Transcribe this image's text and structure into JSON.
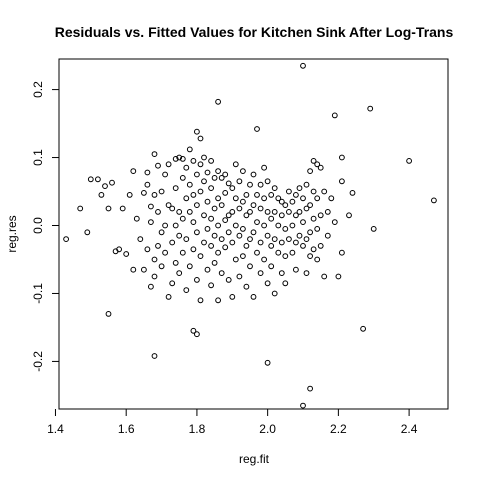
{
  "chart_data": {
    "type": "scatter",
    "title": "Residuals vs. Fitted Values for Kitchen Sink After Log-Trans",
    "xlabel": "reg.fit",
    "ylabel": "reg.res",
    "xlim": [
      1.41,
      2.51
    ],
    "ylim": [
      -0.27,
      0.245
    ],
    "x_ticks": [
      "1.4",
      "1.6",
      "1.8",
      "2.0",
      "2.2",
      "2.4"
    ],
    "y_ticks": [
      "-0.2",
      "-0.1",
      "0.0",
      "0.1",
      "0.2"
    ],
    "grid": false,
    "points": [
      [
        1.43,
        -0.02
      ],
      [
        1.47,
        0.025
      ],
      [
        1.49,
        -0.01
      ],
      [
        1.5,
        0.068
      ],
      [
        1.52,
        0.068
      ],
      [
        1.53,
        0.045
      ],
      [
        1.54,
        0.058
      ],
      [
        1.55,
        -0.13
      ],
      [
        1.55,
        0.025
      ],
      [
        1.56,
        0.063
      ],
      [
        1.57,
        -0.038
      ],
      [
        1.58,
        -0.035
      ],
      [
        1.59,
        0.025
      ],
      [
        1.6,
        -0.042
      ],
      [
        1.61,
        0.045
      ],
      [
        1.62,
        0.08
      ],
      [
        1.62,
        -0.065
      ],
      [
        1.63,
        0.01
      ],
      [
        1.64,
        -0.02
      ],
      [
        1.65,
        0.048
      ],
      [
        1.65,
        -0.065
      ],
      [
        1.66,
        0.06
      ],
      [
        1.66,
        0.078
      ],
      [
        1.66,
        -0.035
      ],
      [
        1.67,
        0.028
      ],
      [
        1.67,
        -0.09
      ],
      [
        1.67,
        0.005
      ],
      [
        1.68,
        0.105
      ],
      [
        1.68,
        0.045
      ],
      [
        1.68,
        -0.05
      ],
      [
        1.68,
        -0.192
      ],
      [
        1.68,
        -0.075
      ],
      [
        1.69,
        0.088
      ],
      [
        1.69,
        0.02
      ],
      [
        1.69,
        -0.03
      ],
      [
        1.7,
        0.05
      ],
      [
        1.7,
        -0.01
      ],
      [
        1.7,
        -0.06
      ],
      [
        1.71,
        0.075
      ],
      [
        1.71,
        0.0
      ],
      [
        1.71,
        -0.04
      ],
      [
        1.72,
        0.09
      ],
      [
        1.72,
        0.03
      ],
      [
        1.72,
        -0.105
      ],
      [
        1.73,
        0.025
      ],
      [
        1.73,
        -0.025
      ],
      [
        1.73,
        -0.085
      ],
      [
        1.74,
        0.098
      ],
      [
        1.74,
        0.055
      ],
      [
        1.74,
        0.0
      ],
      [
        1.74,
        -0.055
      ],
      [
        1.75,
        0.1
      ],
      [
        1.75,
        0.02
      ],
      [
        1.75,
        -0.015
      ],
      [
        1.75,
        -0.07
      ],
      [
        1.76,
        0.098
      ],
      [
        1.76,
        0.07
      ],
      [
        1.76,
        0.01
      ],
      [
        1.76,
        -0.04
      ],
      [
        1.77,
        0.085
      ],
      [
        1.77,
        0.04
      ],
      [
        1.77,
        -0.02
      ],
      [
        1.77,
        -0.095
      ],
      [
        1.78,
        0.112
      ],
      [
        1.78,
        0.06
      ],
      [
        1.78,
        0.02
      ],
      [
        1.78,
        -0.06
      ],
      [
        1.79,
        0.095
      ],
      [
        1.79,
        0.045
      ],
      [
        1.79,
        0.005
      ],
      [
        1.79,
        -0.035
      ],
      [
        1.79,
        -0.155
      ],
      [
        1.8,
        0.138
      ],
      [
        1.8,
        0.075
      ],
      [
        1.8,
        0.03
      ],
      [
        1.8,
        -0.01
      ],
      [
        1.8,
        -0.08
      ],
      [
        1.8,
        -0.16
      ],
      [
        1.81,
        0.128
      ],
      [
        1.81,
        0.09
      ],
      [
        1.81,
        0.05
      ],
      [
        1.81,
        -0.045
      ],
      [
        1.81,
        -0.11
      ],
      [
        1.82,
        0.1
      ],
      [
        1.82,
        0.065
      ],
      [
        1.82,
        0.015
      ],
      [
        1.82,
        -0.025
      ],
      [
        1.83,
        0.078
      ],
      [
        1.83,
        0.035
      ],
      [
        1.83,
        -0.005
      ],
      [
        1.83,
        -0.065
      ],
      [
        1.84,
        0.095
      ],
      [
        1.84,
        0.055
      ],
      [
        1.84,
        0.01
      ],
      [
        1.84,
        -0.03
      ],
      [
        1.84,
        -0.088
      ],
      [
        1.85,
        0.07
      ],
      [
        1.85,
        0.025
      ],
      [
        1.85,
        -0.015
      ],
      [
        1.85,
        -0.055
      ],
      [
        1.86,
        0.182
      ],
      [
        1.86,
        0.08
      ],
      [
        1.86,
        0.04
      ],
      [
        1.86,
        0.0
      ],
      [
        1.86,
        -0.04
      ],
      [
        1.86,
        -0.11
      ],
      [
        1.87,
        0.07
      ],
      [
        1.87,
        0.03
      ],
      [
        1.87,
        -0.02
      ],
      [
        1.87,
        -0.07
      ],
      [
        1.88,
        0.075
      ],
      [
        1.88,
        0.048
      ],
      [
        1.88,
        0.008
      ],
      [
        1.88,
        -0.032
      ],
      [
        1.89,
        0.062
      ],
      [
        1.89,
        0.015
      ],
      [
        1.89,
        -0.01
      ],
      [
        1.89,
        -0.08
      ],
      [
        1.9,
        0.055
      ],
      [
        1.9,
        0.02
      ],
      [
        1.9,
        -0.025
      ],
      [
        1.9,
        -0.105
      ],
      [
        1.91,
        0.09
      ],
      [
        1.91,
        0.04
      ],
      [
        1.91,
        0.0
      ],
      [
        1.91,
        -0.05
      ],
      [
        1.92,
        0.065
      ],
      [
        1.92,
        0.025
      ],
      [
        1.92,
        -0.015
      ],
      [
        1.92,
        -0.075
      ],
      [
        1.93,
        0.08
      ],
      [
        1.93,
        0.035
      ],
      [
        1.93,
        -0.005
      ],
      [
        1.93,
        -0.045
      ],
      [
        1.94,
        0.045
      ],
      [
        1.94,
        0.015
      ],
      [
        1.94,
        -0.03
      ],
      [
        1.94,
        -0.09
      ],
      [
        1.95,
        0.06
      ],
      [
        1.95,
        0.02
      ],
      [
        1.95,
        -0.02
      ],
      [
        1.95,
        -0.06
      ],
      [
        1.96,
        0.075
      ],
      [
        1.96,
        0.03
      ],
      [
        1.96,
        -0.01
      ],
      [
        1.96,
        -0.105
      ],
      [
        1.97,
        0.142
      ],
      [
        1.97,
        0.045
      ],
      [
        1.97,
        0.005
      ],
      [
        1.97,
        -0.04
      ],
      [
        1.98,
        0.06
      ],
      [
        1.98,
        0.025
      ],
      [
        1.98,
        -0.025
      ],
      [
        1.98,
        -0.07
      ],
      [
        1.99,
        0.085
      ],
      [
        1.99,
        0.04
      ],
      [
        1.99,
        0.0
      ],
      [
        1.99,
        -0.05
      ],
      [
        2.0,
        0.065
      ],
      [
        2.0,
        0.02
      ],
      [
        2.0,
        -0.015
      ],
      [
        2.0,
        -0.085
      ],
      [
        2.0,
        -0.202
      ],
      [
        2.01,
        0.045
      ],
      [
        2.01,
        0.01
      ],
      [
        2.01,
        -0.03
      ],
      [
        2.01,
        -0.06
      ],
      [
        2.02,
        0.055
      ],
      [
        2.02,
        0.02
      ],
      [
        2.02,
        -0.02
      ],
      [
        2.02,
        -0.1
      ],
      [
        2.03,
        0.04
      ],
      [
        2.03,
        0.0
      ],
      [
        2.03,
        -0.04
      ],
      [
        2.04,
        0.035
      ],
      [
        2.04,
        0.015
      ],
      [
        2.04,
        -0.025
      ],
      [
        2.04,
        -0.07
      ],
      [
        2.05,
        0.03
      ],
      [
        2.05,
        -0.005
      ],
      [
        2.05,
        -0.045
      ],
      [
        2.05,
        -0.085
      ],
      [
        2.06,
        0.05
      ],
      [
        2.06,
        0.02
      ],
      [
        2.06,
        -0.02
      ],
      [
        2.07,
        0.035
      ],
      [
        2.07,
        0.0
      ],
      [
        2.07,
        -0.04
      ],
      [
        2.08,
        0.045
      ],
      [
        2.08,
        0.015
      ],
      [
        2.08,
        -0.025
      ],
      [
        2.08,
        -0.065
      ],
      [
        2.09,
        0.055
      ],
      [
        2.09,
        0.02
      ],
      [
        2.09,
        -0.015
      ],
      [
        2.1,
        0.235
      ],
      [
        2.1,
        0.04
      ],
      [
        2.1,
        0.005
      ],
      [
        2.1,
        -0.03
      ],
      [
        2.1,
        -0.265
      ],
      [
        2.11,
        0.06
      ],
      [
        2.11,
        0.025
      ],
      [
        2.11,
        -0.02
      ],
      [
        2.11,
        -0.07
      ],
      [
        2.12,
        0.08
      ],
      [
        2.12,
        0.03
      ],
      [
        2.12,
        -0.01
      ],
      [
        2.12,
        -0.045
      ],
      [
        2.12,
        -0.24
      ],
      [
        2.13,
        0.095
      ],
      [
        2.13,
        0.05
      ],
      [
        2.13,
        0.01
      ],
      [
        2.13,
        -0.035
      ],
      [
        2.14,
        0.09
      ],
      [
        2.14,
        0.04
      ],
      [
        2.14,
        -0.005
      ],
      [
        2.14,
        -0.05
      ],
      [
        2.15,
        0.085
      ],
      [
        2.15,
        0.015
      ],
      [
        2.15,
        -0.03
      ],
      [
        2.16,
        0.05
      ],
      [
        2.16,
        -0.075
      ],
      [
        2.17,
        0.02
      ],
      [
        2.17,
        -0.015
      ],
      [
        2.18,
        0.04
      ],
      [
        2.19,
        0.162
      ],
      [
        2.19,
        0.005
      ],
      [
        2.2,
        -0.075
      ],
      [
        2.21,
        0.1
      ],
      [
        2.21,
        0.065
      ],
      [
        2.21,
        -0.04
      ],
      [
        2.23,
        0.015
      ],
      [
        2.24,
        0.048
      ],
      [
        2.27,
        -0.152
      ],
      [
        2.29,
        0.172
      ],
      [
        2.3,
        -0.005
      ],
      [
        2.4,
        0.095
      ],
      [
        2.47,
        0.037
      ]
    ]
  }
}
